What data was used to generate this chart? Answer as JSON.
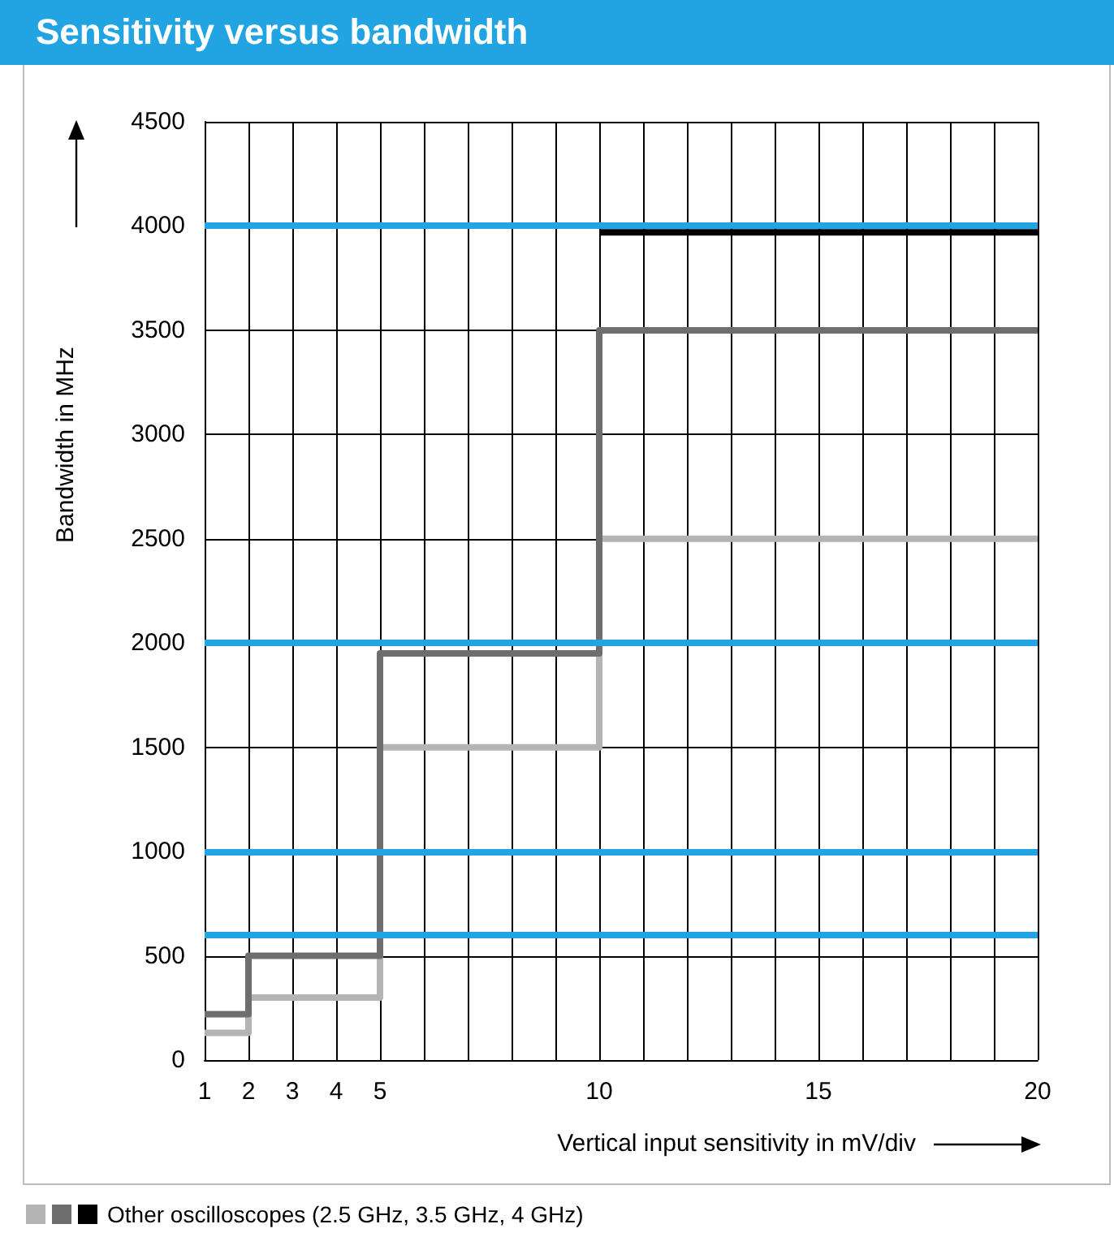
{
  "chart_data": {
    "type": "step",
    "title": "Sensitivity versus bandwidth",
    "xlabel": "Vertical input sensitivity in mV/div",
    "ylabel": "Bandwidth in MHz",
    "legend_title": "Other oscilloscopes (2.5 GHz, 3.5 GHz, 4 GHz)",
    "grid": true,
    "marker": "none",
    "xlim": [
      1,
      20
    ],
    "xticks": [
      1,
      2,
      3,
      4,
      5,
      {
        "value": 6,
        "label": null
      },
      {
        "value": 7,
        "label": null
      },
      {
        "value": 8,
        "label": null
      },
      {
        "value": 9,
        "label": null
      },
      10,
      {
        "value": 11,
        "label": null
      },
      {
        "value": 12,
        "label": null
      },
      {
        "value": 13,
        "label": null
      },
      {
        "value": 14,
        "label": null
      },
      15,
      {
        "value": 16,
        "label": null
      },
      {
        "value": 17,
        "label": null
      },
      {
        "value": 18,
        "label": null
      },
      {
        "value": 19,
        "label": null
      },
      20
    ],
    "ylim": [
      0,
      4500
    ],
    "yticks": [
      0,
      500,
      1000,
      1500,
      2000,
      2500,
      3000,
      3500,
      4000,
      4500
    ],
    "series": [
      {
        "color": "#b4b4b4",
        "x": [
          1,
          2,
          5,
          10,
          20
        ],
        "values": [
          130,
          300,
          1500,
          2500,
          2500
        ]
      },
      {
        "color": "#6e6e6e",
        "x": [
          1,
          2,
          5,
          10,
          20
        ],
        "values": [
          220,
          500,
          1950,
          3500,
          3500
        ]
      },
      {
        "color": "#000000",
        "x": [
          10,
          20
        ],
        "values": [
          3970,
          3970
        ]
      }
    ],
    "ref_lines": [
      {
        "axis": "y",
        "value": 600,
        "color": "#22a3e2"
      },
      {
        "axis": "y",
        "value": 1000,
        "color": "#22a3e2"
      },
      {
        "axis": "y",
        "value": 2000,
        "color": "#22a3e2"
      },
      {
        "axis": "y",
        "value": 4000,
        "color": "#22a3e2"
      }
    ]
  }
}
